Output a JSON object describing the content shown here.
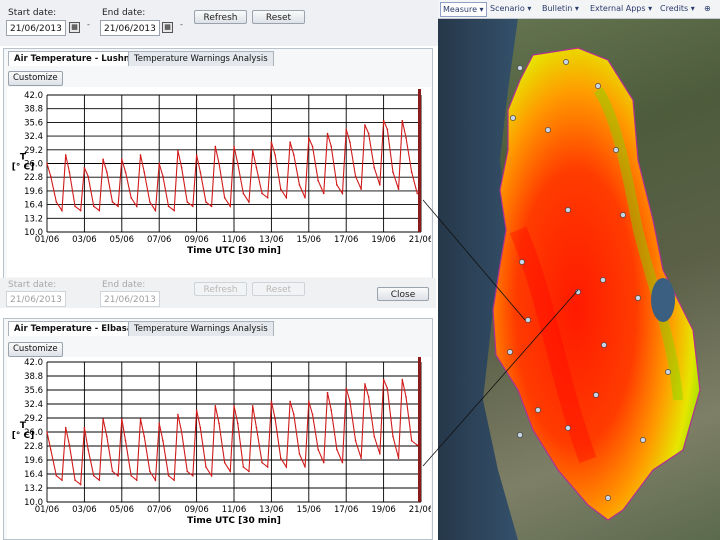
{
  "toolbar": {
    "start_label": "Start date:",
    "start_value": "21/06/2013",
    "end_label": "End date:",
    "end_value": "21/06/2013",
    "refresh_label": "Refresh",
    "reset_label": "Reset",
    "close_label": "Close"
  },
  "panel1": {
    "tabs": [
      "Air Temperature - Lushnje",
      "Temperature Warnings Analysis"
    ],
    "customize_label": "Customize"
  },
  "panel2": {
    "tabs": [
      "Air Temperature - Elbasan",
      "Temperature Warnings Analysis"
    ],
    "customize_label": "Customize"
  },
  "map_menu": [
    "Measure ▾",
    "Scenario ▾",
    "Bulletin ▾",
    "External Apps ▾",
    "Credits ▾"
  ],
  "colors": {
    "series": "#d11a1a",
    "marker": "#8b1a1a",
    "grid": "#000000"
  },
  "chart_data": [
    {
      "type": "line",
      "title": "Air Temperature - Lushnje",
      "xlabel": "Time UTC [30 min]",
      "ylabel": "T\n[° C]",
      "xticks": [
        "01/06",
        "03/06",
        "05/06",
        "07/06",
        "09/06",
        "11/06",
        "13/06",
        "15/06",
        "17/06",
        "19/06",
        "21/06"
      ],
      "yticks": [
        10.0,
        13.2,
        16.4,
        19.6,
        22.8,
        26.0,
        29.2,
        32.4,
        35.6,
        38.8,
        42.0
      ],
      "ylim": [
        10.0,
        42.0
      ],
      "xlim": [
        1,
        21
      ],
      "grid": true,
      "series": [
        {
          "days": [
            1,
            1.2,
            1.5,
            1.8,
            2,
            2.2,
            2.5,
            2.8,
            3,
            3.2,
            3.5,
            3.8,
            4,
            4.2,
            4.5,
            4.8,
            5,
            5.2,
            5.5,
            5.8,
            6,
            6.2,
            6.5,
            6.8,
            7,
            7.2,
            7.5,
            7.8,
            8,
            8.2,
            8.5,
            8.8,
            9,
            9.2,
            9.5,
            9.8,
            10,
            10.2,
            10.5,
            10.8,
            11,
            11.2,
            11.5,
            11.8,
            12,
            12.2,
            12.5,
            12.8,
            13,
            13.2,
            13.5,
            13.8,
            14,
            14.2,
            14.5,
            14.8,
            15,
            15.2,
            15.5,
            15.8,
            16,
            16.2,
            16.5,
            16.8,
            17,
            17.2,
            17.5,
            17.8,
            18,
            18.2,
            18.5,
            18.8,
            19,
            19.2,
            19.5,
            19.8,
            20,
            20.2,
            20.5,
            20.8
          ],
          "values": [
            26,
            23,
            17,
            15,
            28,
            24,
            16,
            15,
            25,
            23,
            16,
            15,
            27,
            24,
            17,
            16,
            27,
            24,
            18,
            16,
            28,
            24,
            17,
            15,
            26,
            23,
            16,
            15,
            29,
            25,
            17,
            16,
            28,
            24,
            17,
            16,
            30,
            26,
            18,
            16,
            30,
            26,
            19,
            17,
            29,
            25,
            19,
            18,
            31,
            28,
            20,
            18,
            31,
            28,
            21,
            18,
            32,
            30,
            22,
            19,
            33,
            30,
            21,
            19,
            34,
            31,
            23,
            20,
            35,
            33,
            25,
            21,
            36,
            34,
            24,
            20,
            36,
            32,
            24,
            19
          ]
        }
      ]
    },
    {
      "type": "line",
      "title": "Air Temperature - Elbasan",
      "xlabel": "Time UTC [30 min]",
      "ylabel": "T\n[° C]",
      "xticks": [
        "01/06",
        "03/06",
        "05/06",
        "07/06",
        "09/06",
        "11/06",
        "13/06",
        "15/06",
        "17/06",
        "19/06",
        "21/06"
      ],
      "yticks": [
        10.0,
        13.2,
        16.4,
        19.6,
        22.8,
        26.0,
        29.2,
        32.4,
        35.6,
        38.8,
        42.0
      ],
      "ylim": [
        10.0,
        42.0
      ],
      "xlim": [
        1,
        21
      ],
      "grid": true,
      "series": [
        {
          "days": [
            1,
            1.2,
            1.5,
            1.8,
            2,
            2.2,
            2.5,
            2.8,
            3,
            3.2,
            3.5,
            3.8,
            4,
            4.2,
            4.5,
            4.8,
            5,
            5.2,
            5.5,
            5.8,
            6,
            6.2,
            6.5,
            6.8,
            7,
            7.2,
            7.5,
            7.8,
            8,
            8.2,
            8.5,
            8.8,
            9,
            9.2,
            9.5,
            9.8,
            10,
            10.2,
            10.5,
            10.8,
            11,
            11.2,
            11.5,
            11.8,
            12,
            12.2,
            12.5,
            12.8,
            13,
            13.2,
            13.5,
            13.8,
            14,
            14.2,
            14.5,
            14.8,
            15,
            15.2,
            15.5,
            15.8,
            16,
            16.2,
            16.5,
            16.8,
            17,
            17.2,
            17.5,
            17.8,
            18,
            18.2,
            18.5,
            18.8,
            19,
            19.2,
            19.5,
            19.8,
            20,
            20.2,
            20.5,
            20.8
          ],
          "values": [
            26,
            22,
            16,
            15,
            27,
            23,
            15,
            14,
            27,
            22,
            16,
            15,
            29,
            25,
            17,
            16,
            29,
            24,
            16,
            15,
            29,
            25,
            17,
            15,
            28,
            24,
            16,
            15,
            30,
            26,
            17,
            16,
            31,
            27,
            18,
            16,
            32,
            28,
            19,
            17,
            32,
            28,
            18,
            17,
            32,
            27,
            19,
            18,
            33,
            29,
            20,
            18,
            33,
            30,
            21,
            18,
            33,
            30,
            22,
            19,
            35,
            31,
            22,
            19,
            36,
            33,
            24,
            20,
            37,
            34,
            25,
            21,
            38,
            36,
            25,
            20,
            38,
            34,
            24,
            23
          ]
        }
      ]
    }
  ]
}
